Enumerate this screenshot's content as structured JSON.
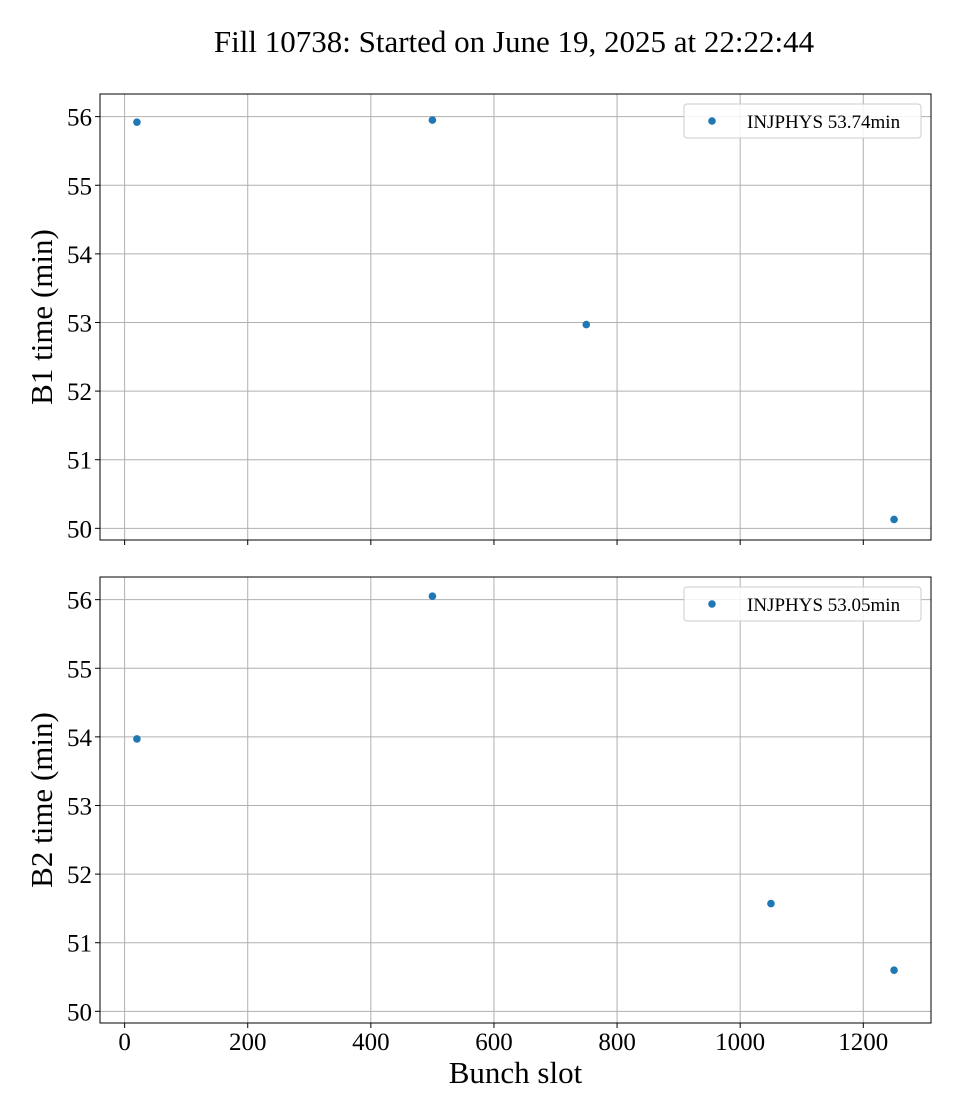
{
  "figure": {
    "title": "Fill 10738: Started on June 19, 2025 at 22:22:44"
  },
  "chart_data": [
    {
      "type": "scatter",
      "xlabel": "",
      "ylabel": "B1 time (min)",
      "xlim": [
        -40,
        1310
      ],
      "ylim": [
        49.83,
        56.33
      ],
      "xticks": [
        0,
        200,
        400,
        600,
        800,
        1000,
        1200
      ],
      "yticks": [
        50,
        51,
        52,
        53,
        54,
        55,
        56
      ],
      "show_xtick_labels": false,
      "grid": true,
      "legend_position": "top-right",
      "series": [
        {
          "name": "INJPHYS 53.74min",
          "color": "#1f77b4",
          "x": [
            20,
            500,
            750,
            1250
          ],
          "y": [
            55.92,
            55.95,
            52.97,
            50.13
          ]
        }
      ]
    },
    {
      "type": "scatter",
      "xlabel": "Bunch slot",
      "ylabel": "B2 time (min)",
      "xlim": [
        -40,
        1310
      ],
      "ylim": [
        49.83,
        56.33
      ],
      "xticks": [
        0,
        200,
        400,
        600,
        800,
        1000,
        1200
      ],
      "yticks": [
        50,
        51,
        52,
        53,
        54,
        55,
        56
      ],
      "show_xtick_labels": true,
      "grid": true,
      "legend_position": "top-right",
      "series": [
        {
          "name": "INJPHYS 53.05min",
          "color": "#1f77b4",
          "x": [
            20,
            500,
            1050,
            1250
          ],
          "y": [
            53.97,
            56.05,
            51.57,
            50.6
          ]
        }
      ]
    }
  ]
}
